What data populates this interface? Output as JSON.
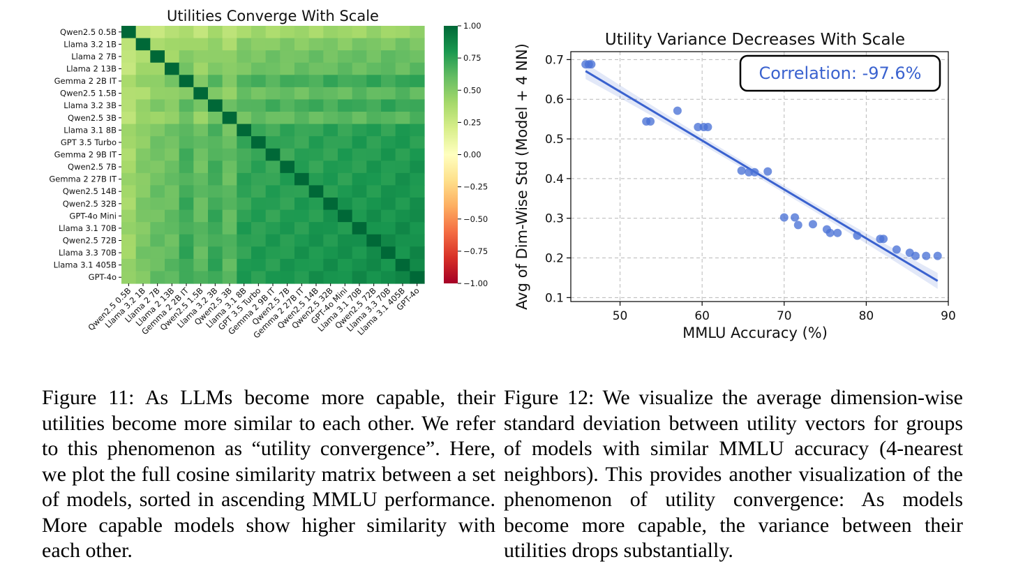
{
  "chart_data": [
    {
      "type": "heatmap",
      "title": "Utilities Converge With Scale",
      "labels": [
        "Qwen2.5 0.5B",
        "Llama 3.2 1B",
        "Llama 2 7B",
        "Llama 2 13B",
        "Gemma 2 2B IT",
        "Qwen2.5 1.5B",
        "Llama 3.2 3B",
        "Qwen2.5 3B",
        "Llama 3.1 8B",
        "GPT 3.5 Turbo",
        "Gemma 2 9B IT",
        "Qwen2.5 7B",
        "Gemma 2 27B IT",
        "Qwen2.5 14B",
        "Qwen2.5 32B",
        "GPT-4o Mini",
        "Llama 3.1 70B",
        "Qwen2.5 72B",
        "Llama 3.3 70B",
        "Llama 3.1 405B",
        "GPT-4o"
      ],
      "colorbar": {
        "min": -1.0,
        "max": 1.0,
        "ticks": [
          1.0,
          0.75,
          0.5,
          0.25,
          0.0,
          -0.25,
          -0.5,
          -0.75,
          -1.0
        ],
        "tick_labels": [
          "1.00",
          "0.75",
          "0.50",
          "0.25",
          "0.00",
          "−0.25",
          "−0.50",
          "−0.75",
          "−1.00"
        ]
      },
      "row_base": [
        0.22,
        0.34,
        0.42,
        0.44,
        0.62,
        0.46,
        0.62,
        0.48,
        0.7,
        0.72,
        0.73,
        0.74,
        0.76,
        0.78,
        0.79,
        0.8,
        0.82,
        0.83,
        0.84,
        0.85,
        0.86
      ],
      "ylabel": "",
      "xlabel": ""
    },
    {
      "type": "scatter",
      "title": "Utility Variance Decreases With Scale",
      "xlabel": "MMLU Accuracy (%)",
      "ylabel": "Avg of Dim-Wise Std (Model + 4 NN)",
      "xlim": [
        44,
        90
      ],
      "ylim": [
        0.09,
        0.72
      ],
      "xticks": [
        50,
        60,
        70,
        80,
        90
      ],
      "yticks": [
        0.1,
        0.2,
        0.3,
        0.4,
        0.5,
        0.6,
        0.7
      ],
      "grid": true,
      "x": [
        45.8,
        46.2,
        46.5,
        53.2,
        53.7,
        57.0,
        59.5,
        60.2,
        60.7,
        64.8,
        65.7,
        66.4,
        68.0,
        70.0,
        71.3,
        71.7,
        73.5,
        75.2,
        75.6,
        76.5,
        78.9,
        81.7,
        82.1,
        83.7,
        85.3,
        86.0,
        87.3,
        88.7
      ],
      "y": [
        0.688,
        0.688,
        0.688,
        0.544,
        0.544,
        0.571,
        0.53,
        0.53,
        0.53,
        0.42,
        0.416,
        0.416,
        0.418,
        0.302,
        0.302,
        0.283,
        0.285,
        0.272,
        0.263,
        0.263,
        0.256,
        0.248,
        0.248,
        0.221,
        0.213,
        0.205,
        0.205,
        0.205
      ],
      "fit": {
        "x0": 45.8,
        "y0": 0.671,
        "x1": 88.7,
        "y1": 0.142
      },
      "annotation": "Correlation: -97.6%",
      "point_color": "#4a72d6",
      "line_color": "#3a62cf"
    }
  ],
  "captions": {
    "fig11": "Figure 11: As LLMs become more capable, their utilities become more similar to each other. We refer to this phenomenon as “utility convergence”. Here, we plot the full cosine similarity matrix between a set of models, sorted in ascending MMLU performance. More capable models show higher similarity with each other.",
    "fig12": "Figure 12: We visualize the average dimension-wise standard deviation between utility vectors for groups of models with similar MMLU accuracy (4-nearest neighbors). This provides another visualization of the phenomenon of utility convergence: As models become more capable, the variance between their utilities drops substantially."
  }
}
